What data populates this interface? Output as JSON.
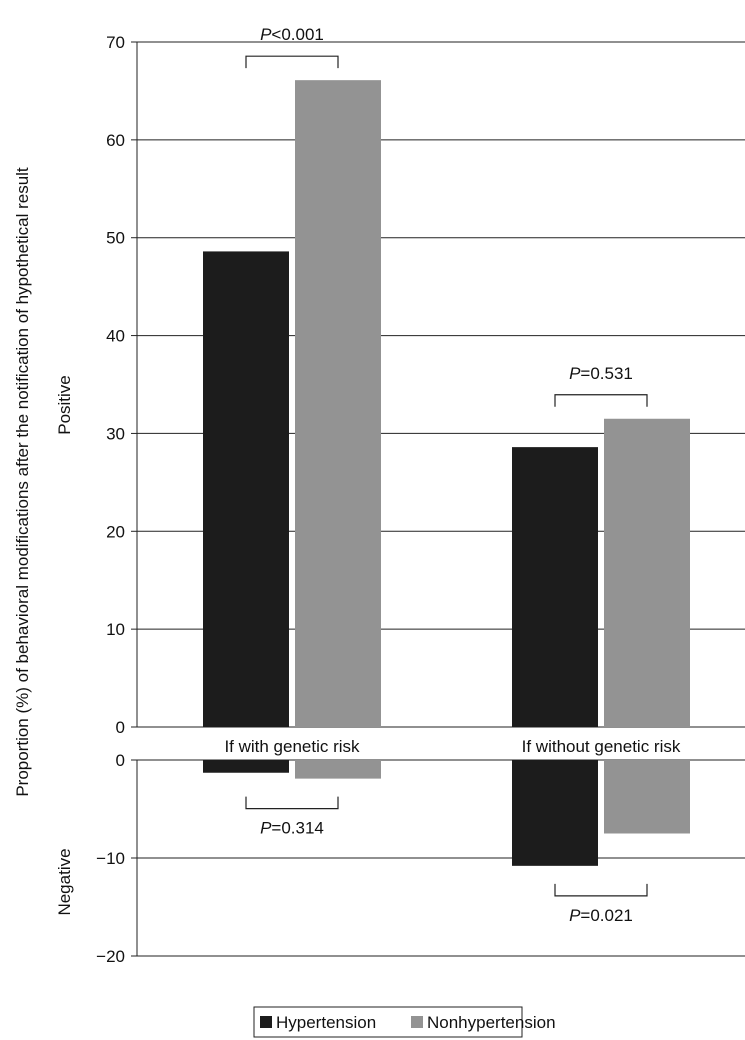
{
  "chart_data": {
    "type": "bar",
    "ylabel": "Proportion (%) of behavioral modifications after the notification of hypothetical result",
    "categories": [
      "If with genetic risk",
      "If without genetic risk"
    ],
    "colors": {
      "Hypertension": "#1c1c1c",
      "Nonhypertension": "#939393"
    },
    "panels": [
      {
        "label": "Positive",
        "ylim": [
          0,
          70
        ],
        "yticks": [
          0,
          10,
          20,
          30,
          40,
          50,
          60,
          70
        ],
        "series": [
          {
            "name": "Hypertension",
            "values": [
              48.6,
              28.6
            ]
          },
          {
            "name": "Nonhypertension",
            "values": [
              66.1,
              31.5
            ]
          }
        ],
        "annotations": [
          {
            "category": 0,
            "text_prefix": "P",
            "text_value": "<0.001"
          },
          {
            "category": 1,
            "text_prefix": "P",
            "text_value": "=0.531"
          }
        ]
      },
      {
        "label": "Negative",
        "ylim": [
          -20,
          0
        ],
        "yticks": [
          0,
          -10,
          -20
        ],
        "tick_labels": [
          "0",
          "−10",
          "−20"
        ],
        "series": [
          {
            "name": "Hypertension",
            "values": [
              -1.3,
              -10.8
            ]
          },
          {
            "name": "Nonhypertension",
            "values": [
              -1.9,
              -7.5
            ]
          }
        ],
        "annotations": [
          {
            "category": 0,
            "text_prefix": "P",
            "text_value": "=0.314"
          },
          {
            "category": 1,
            "text_prefix": "P",
            "text_value": "=0.021"
          }
        ]
      }
    ],
    "legend": {
      "position": "bottom-center",
      "entries": [
        "Hypertension",
        "Nonhypertension"
      ]
    },
    "grid": "horizontal"
  }
}
